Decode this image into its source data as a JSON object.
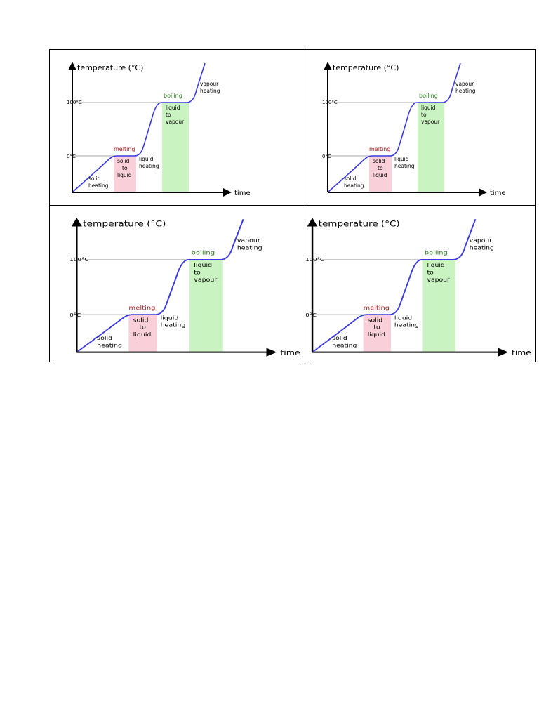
{
  "figure": {
    "y_axis_label": "temperature (°C)",
    "x_axis_label": "time",
    "ticks": {
      "upper": "100°C",
      "lower": "0°C"
    },
    "phases": {
      "solid_heating": [
        "solid",
        "heating"
      ],
      "melting_title": "melting",
      "melting_box": [
        "solid",
        "to",
        "liquid"
      ],
      "liquid_heating": [
        "liquid",
        "heating"
      ],
      "boiling_title": "boiling",
      "boiling_box": [
        "liquid",
        "to",
        "vapour"
      ],
      "vapour_heating": [
        "vapour",
        "heating"
      ]
    },
    "colors": {
      "curve": "#3a3ae0",
      "melting_fill": "#f9d0d9",
      "melting_text": "#b22222",
      "boiling_fill": "#c9f3c0",
      "boiling_text": "#2e7d1e",
      "guideline": "#aaaaaa",
      "axis": "#000000"
    },
    "copies": 4
  }
}
